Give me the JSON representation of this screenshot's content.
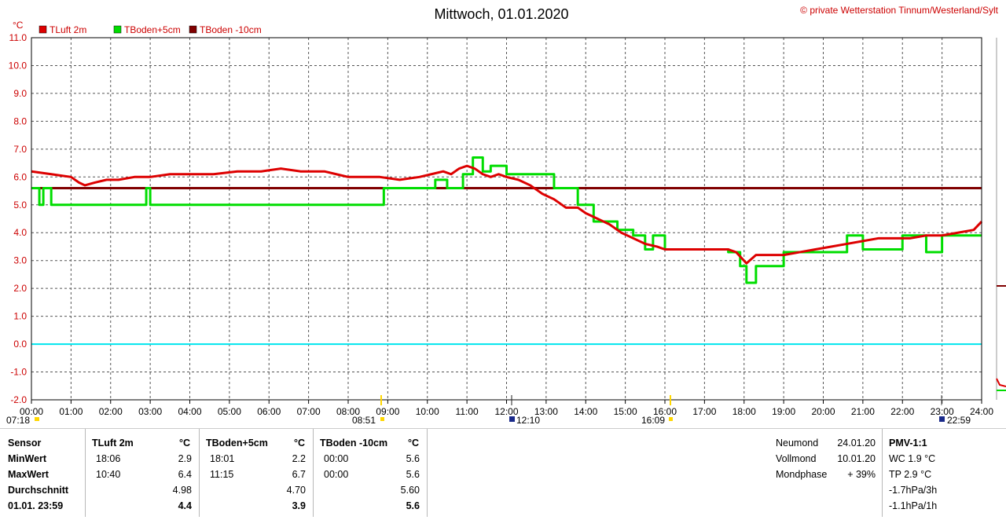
{
  "header": {
    "title": "Mittwoch, 01.01.2020",
    "copyright": "© private Wetterstation Tinnum/Westerland/Sylt",
    "unit": "°C"
  },
  "legend": [
    {
      "label": "TLuft 2m",
      "color": "#dd0000"
    },
    {
      "label": "TBoden+5cm",
      "color": "#00dd00"
    },
    {
      "label": "TBoden -10cm",
      "color": "#800000"
    }
  ],
  "sun": {
    "sunrise": "08:51",
    "sunset": "16:09",
    "noon": "12:10"
  },
  "moon_marks": {
    "left": "07:18",
    "right": "22:59"
  },
  "chart_data": {
    "type": "line",
    "title": "Mittwoch, 01.01.2020",
    "xlim": [
      0,
      24
    ],
    "ylim": [
      -2,
      11
    ],
    "y_ticks": [
      "11.0",
      "10.0",
      "9.0",
      "8.0",
      "7.0",
      "6.0",
      "5.0",
      "4.0",
      "3.0",
      "2.0",
      "1.0",
      "0.0",
      "-1.0",
      "-2.0"
    ],
    "x_ticks": [
      "00:00",
      "01:00",
      "02:00",
      "03:00",
      "04:00",
      "05:00",
      "06:00",
      "07:00",
      "08:00",
      "09:00",
      "10:00",
      "11:00",
      "12:00",
      "13:00",
      "14:00",
      "15:00",
      "16:00",
      "17:00",
      "18:00",
      "19:00",
      "20:00",
      "21:00",
      "22:00",
      "23:00",
      "24:00"
    ],
    "grid": true,
    "reference_line": {
      "y": 0.0,
      "color": "#00e5ee"
    },
    "series": [
      {
        "name": "TLuft 2m",
        "color": "#dd0000",
        "x": [
          0,
          0.5,
          1,
          1.2,
          1.35,
          1.6,
          1.9,
          2.2,
          2.6,
          3,
          3.5,
          4,
          4.6,
          5.2,
          5.8,
          6.3,
          6.8,
          7.4,
          7.7,
          8,
          8.3,
          8.8,
          9.3,
          9.8,
          10.1,
          10.4,
          10.6,
          10.8,
          11,
          11.2,
          11.4,
          11.6,
          11.8,
          12,
          12.3,
          12.6,
          12.9,
          13.2,
          13.5,
          13.8,
          14,
          14.3,
          14.6,
          14.9,
          15.2,
          15.5,
          15.8,
          16,
          16.4,
          16.8,
          17.2,
          17.6,
          17.8,
          18.06,
          18.3,
          18.6,
          19,
          19.4,
          19.8,
          20.2,
          20.6,
          21,
          21.4,
          21.8,
          22.2,
          22.6,
          23,
          23.4,
          23.8,
          24
        ],
        "values": [
          6.2,
          6.1,
          6.0,
          5.8,
          5.7,
          5.8,
          5.9,
          5.9,
          6.0,
          6.0,
          6.1,
          6.1,
          6.1,
          6.2,
          6.2,
          6.3,
          6.2,
          6.2,
          6.1,
          6.0,
          6.0,
          6.0,
          5.9,
          6.0,
          6.1,
          6.2,
          6.1,
          6.3,
          6.4,
          6.3,
          6.1,
          6.0,
          6.1,
          6.0,
          5.9,
          5.7,
          5.4,
          5.2,
          4.9,
          4.9,
          4.7,
          4.5,
          4.3,
          4.0,
          3.8,
          3.6,
          3.5,
          3.4,
          3.4,
          3.4,
          3.4,
          3.4,
          3.3,
          2.9,
          3.2,
          3.2,
          3.2,
          3.3,
          3.4,
          3.5,
          3.6,
          3.7,
          3.8,
          3.8,
          3.8,
          3.9,
          3.9,
          4.0,
          4.1,
          4.4
        ]
      },
      {
        "name": "TBoden+5cm",
        "color": "#00dd00",
        "x": [
          0,
          0.2,
          0.3,
          0.5,
          2.4,
          2.9,
          3.0,
          8.9,
          9.1,
          9.4,
          9.8,
          10.2,
          10.5,
          10.9,
          11.15,
          11.4,
          11.6,
          12.0,
          12.6,
          13.2,
          13.8,
          14.2,
          14.8,
          15.2,
          15.5,
          15.7,
          16.0,
          16.4,
          16.8,
          17.2,
          17.6,
          17.9,
          18.06,
          18.3,
          18.6,
          19.0,
          19.5,
          20.0,
          20.6,
          21.0,
          21.5,
          22.0,
          22.4,
          22.6,
          23.0,
          23.4,
          24.0
        ],
        "values": [
          5.6,
          5.0,
          5.6,
          5.0,
          5.0,
          5.6,
          5.0,
          5.6,
          5.6,
          5.6,
          5.6,
          5.9,
          5.6,
          6.1,
          6.7,
          6.2,
          6.4,
          6.1,
          6.1,
          5.6,
          5.0,
          4.4,
          4.1,
          3.9,
          3.4,
          3.9,
          3.4,
          3.4,
          3.4,
          3.4,
          3.3,
          2.8,
          2.2,
          2.8,
          2.8,
          3.3,
          3.3,
          3.3,
          3.9,
          3.4,
          3.4,
          3.9,
          3.9,
          3.3,
          3.9,
          3.9,
          3.9
        ]
      },
      {
        "name": "TBoden -10cm",
        "color": "#800000",
        "x": [
          0,
          24
        ],
        "values": [
          5.6,
          5.6
        ]
      }
    ]
  },
  "stats": {
    "headers": {
      "sensor": "Sensor",
      "tluft": "TLuft 2m",
      "tb5": "TBoden+5cm",
      "tb10": "TBoden -10cm",
      "unit": "°C"
    },
    "rows": [
      {
        "label": "MinWert",
        "tluft_time": "18:06",
        "tluft_val": "2.9",
        "tb5_time": "18:01",
        "tb5_val": "2.2",
        "tb10_time": "00:00",
        "tb10_val": "5.6"
      },
      {
        "label": "MaxWert",
        "tluft_time": "10:40",
        "tluft_val": "6.4",
        "tb5_time": "11:15",
        "tb5_val": "6.7",
        "tb10_time": "00:00",
        "tb10_val": "5.6"
      },
      {
        "label": "Durchschnitt",
        "tluft_time": "",
        "tluft_val": "4.98",
        "tb5_time": "",
        "tb5_val": "4.70",
        "tb10_time": "",
        "tb10_val": "5.60"
      },
      {
        "label": "01.01. 23:59",
        "tluft_time": "",
        "tluft_val": "4.4",
        "tb5_time": "",
        "tb5_val": "3.9",
        "tb10_time": "",
        "tb10_val": "5.6"
      }
    ],
    "moon": [
      {
        "label": "Neumond",
        "value": "24.01.20"
      },
      {
        "label": "Vollmond",
        "value": "10.01.20"
      },
      {
        "label": "Mondphase",
        "value": "+ 39%"
      }
    ],
    "pmv": [
      "PMV-1:1",
      "WC 1.9 °C",
      "TP 2.9 °C",
      "-1.7hPa/3h",
      "-1.1hPa/1h"
    ]
  }
}
